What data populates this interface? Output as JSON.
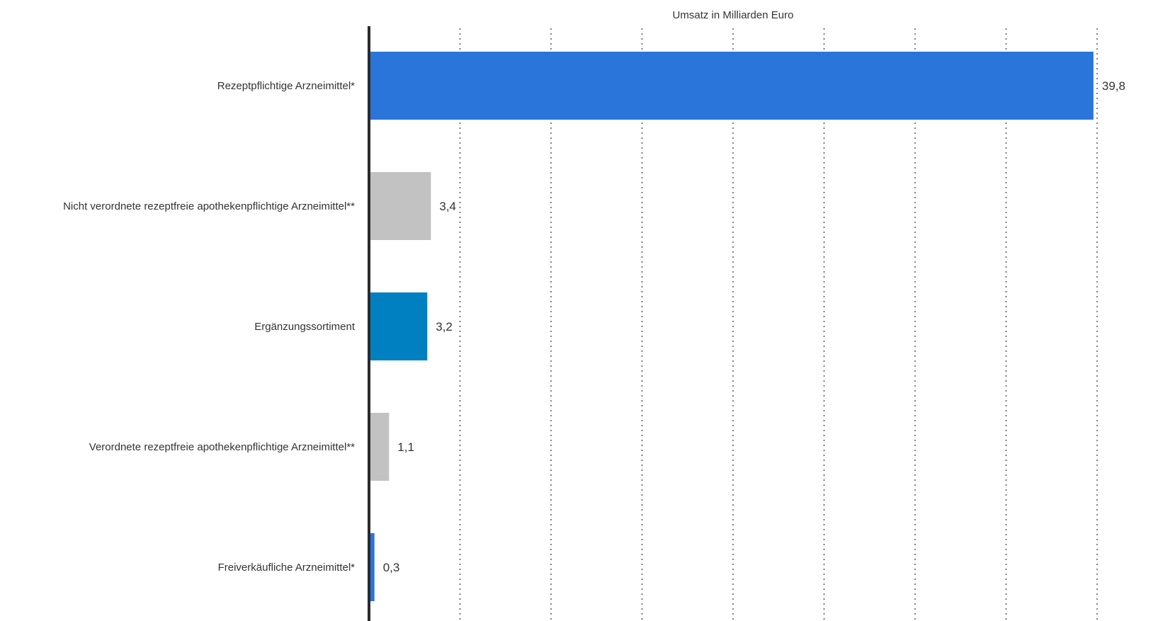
{
  "chart_data": {
    "type": "bar",
    "orientation": "horizontal",
    "xlabel": "Umsatz in Milliarden Euro",
    "xlim": [
      0,
      40
    ],
    "grid": true,
    "legend": "none",
    "categories": [
      "Rezeptpflichtige Arzneimittel*",
      "Nicht verordnete rezeptfreie apothekenpflichtige Arzneimittel**",
      "Ergänzungssortiment",
      "Verordnete rezeptfreie apothekenpflichtige Arzneimittel**",
      "Freiverkäufliche Arzneimittel*"
    ],
    "values": [
      39.8,
      3.4,
      3.2,
      1.1,
      0.3
    ],
    "value_labels": [
      "39,8",
      "3,4",
      "3,2",
      "1,1",
      "0,3"
    ],
    "colors": [
      "#2a75d9",
      "#c2c2c2",
      "#0080c0",
      "#c2c2c2",
      "#2a75d9"
    ]
  }
}
